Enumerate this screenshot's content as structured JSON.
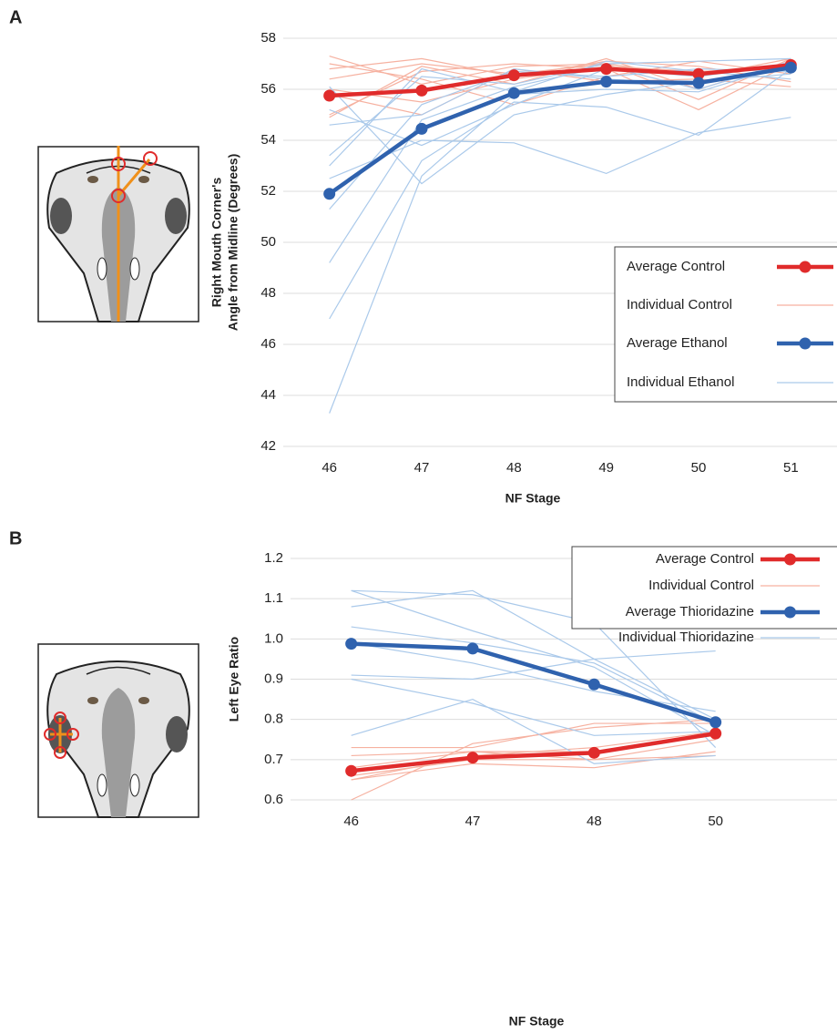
{
  "chart_data": [
    {
      "type": "line",
      "panel": "A",
      "xlabel": "NF Stage",
      "ylabel": [
        "Right Mouth Corner's",
        "Angle from Midline (Degrees)"
      ],
      "categories": [
        "46",
        "47",
        "48",
        "49",
        "50",
        "51"
      ],
      "ylim": [
        42,
        58
      ],
      "yticks": [
        42,
        44,
        46,
        48,
        50,
        52,
        54,
        56,
        58
      ],
      "grid": true,
      "legend": "right",
      "series": [
        {
          "name": "Average Control",
          "color": "#e02b2b",
          "values": [
            55.75,
            55.95,
            56.55,
            56.8,
            56.6,
            56.95
          ]
        },
        {
          "name": "Individual Control",
          "color": "#f6b1a0",
          "lines": [
            [
              57.3,
              56.2,
              56.9,
              57.0,
              56.5,
              57.2
            ],
            [
              56.8,
              57.2,
              56.5,
              57.1,
              56.9,
              56.3
            ],
            [
              55.0,
              56.7,
              57.0,
              56.8,
              55.2,
              57.0
            ],
            [
              56.0,
              55.5,
              56.4,
              56.9,
              56.7,
              56.8
            ],
            [
              54.9,
              56.9,
              56.2,
              57.2,
              56.0,
              57.1
            ],
            [
              57.0,
              56.4,
              55.4,
              56.5,
              57.1,
              56.6
            ],
            [
              55.8,
              55.0,
              56.8,
              56.3,
              56.4,
              56.1
            ],
            [
              56.4,
              57.0,
              56.6,
              57.0,
              55.6,
              57.2
            ]
          ]
        },
        {
          "name": "Average Ethanol",
          "color": "#2f62ae",
          "values": [
            51.9,
            54.45,
            55.85,
            56.3,
            56.25,
            56.85
          ]
        },
        {
          "name": "Individual Ethanol",
          "color": "#aac9ea",
          "lines": [
            [
              43.3,
              52.6,
              55.8,
              56.0,
              55.9,
              57.0
            ],
            [
              47.0,
              53.2,
              55.5,
              55.3,
              54.2,
              56.8
            ],
            [
              49.2,
              54.8,
              56.1,
              56.9,
              56.0,
              57.1
            ],
            [
              51.3,
              55.4,
              56.7,
              56.5,
              56.8,
              56.7
            ],
            [
              52.5,
              54.0,
              53.9,
              52.7,
              54.3,
              54.9
            ],
            [
              53.4,
              56.5,
              56.2,
              57.0,
              57.1,
              57.2
            ],
            [
              54.6,
              55.0,
              56.8,
              56.4,
              56.2,
              56.9
            ],
            [
              55.2,
              53.8,
              55.4,
              56.8,
              56.5,
              57.0
            ],
            [
              53.0,
              56.8,
              55.9,
              57.1,
              56.7,
              56.4
            ],
            [
              56.1,
              52.3,
              55.0,
              55.8,
              56.3,
              56.6
            ]
          ]
        }
      ]
    },
    {
      "type": "line",
      "panel": "B",
      "xlabel": "NF Stage",
      "ylabel": [
        "Left Eye Ratio"
      ],
      "categories": [
        "46",
        "47",
        "48",
        "50"
      ],
      "ylim": [
        0.6,
        1.2
      ],
      "yticks": [
        0.6,
        0.7,
        0.8,
        0.9,
        {
          "value": 1,
          "label": "1.0"
        },
        1.1,
        1.2
      ],
      "grid": true,
      "legend": "upper right",
      "series": [
        {
          "name": "Average Control",
          "color": "#e02b2b",
          "values": [
            0.672,
            0.705,
            0.717,
            0.765
          ]
        },
        {
          "name": "Individual Control",
          "color": "#f6b1a0",
          "lines": [
            [
              0.6,
              0.74,
              0.78,
              0.8
            ],
            [
              0.65,
              0.69,
              0.68,
              0.72
            ],
            [
              0.71,
              0.72,
              0.72,
              0.76
            ],
            [
              0.73,
              0.73,
              0.79,
              0.79
            ],
            [
              0.66,
              0.7,
              0.7,
              0.75
            ],
            [
              0.68,
              0.72,
              0.7,
              0.71
            ],
            [
              0.65,
              0.71,
              0.73,
              0.77
            ]
          ]
        },
        {
          "name": "Average Thioridazine",
          "color": "#2f62ae",
          "values": [
            0.988,
            0.976,
            0.887,
            0.793
          ]
        },
        {
          "name": "Individual Thioridazine",
          "color": "#aac9ea",
          "lines": [
            [
              1.12,
              1.11,
              1.04,
              0.73
            ],
            [
              1.08,
              1.12,
              0.95,
              0.8
            ],
            [
              1.03,
              0.99,
              0.94,
              0.79
            ],
            [
              0.91,
              0.9,
              0.95,
              0.97
            ],
            [
              0.9,
              0.84,
              0.76,
              0.77
            ],
            [
              0.76,
              0.85,
              0.69,
              0.71
            ],
            [
              1.12,
              1.02,
              0.93,
              0.76
            ],
            [
              0.99,
              0.94,
              0.87,
              0.82
            ]
          ]
        }
      ]
    }
  ]
}
